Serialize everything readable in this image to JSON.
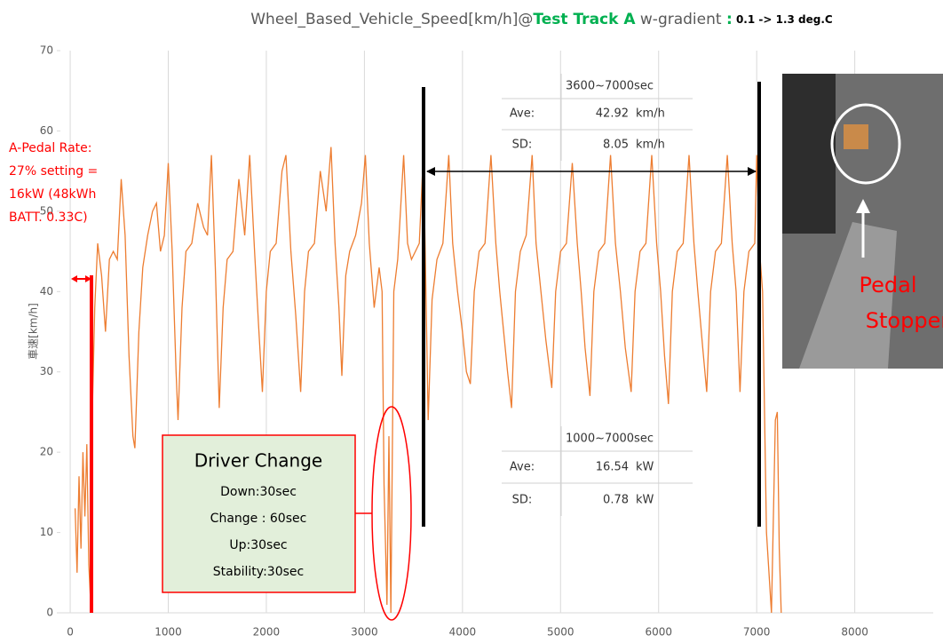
{
  "chart_data": {
    "type": "line",
    "title_parts": [
      "Wheel_Based_Vehicle_Speed[km/h]@",
      "Test Track A",
      " w-gradient ",
      ":",
      " 0.1 -> 1.3 deg.C"
    ],
    "y_label": "車速[km/h]",
    "color": "#ed7d31",
    "x": [
      50,
      70,
      90,
      110,
      130,
      150,
      170,
      190,
      210,
      230,
      250,
      280,
      320,
      360,
      400,
      440,
      480,
      520,
      560,
      600,
      640,
      660,
      700,
      740,
      790,
      840,
      880,
      920,
      960,
      1000,
      1040,
      1080,
      1100,
      1140,
      1180,
      1240,
      1300,
      1360,
      1400,
      1440,
      1480,
      1520,
      1560,
      1600,
      1660,
      1720,
      1780,
      1830,
      1880,
      1920,
      1960,
      2000,
      2040,
      2100,
      2160,
      2200,
      2250,
      2300,
      2350,
      2390,
      2430,
      2490,
      2550,
      2610,
      2660,
      2700,
      2740,
      2770,
      2810,
      2850,
      2910,
      2970,
      3010,
      3050,
      3100,
      3150,
      3180,
      3200,
      3230,
      3250,
      3270,
      3300,
      3340,
      3400,
      3440,
      3480,
      3520,
      3560,
      3600,
      3620,
      3650,
      3690,
      3740,
      3800,
      3860,
      3900,
      3950,
      4000,
      4040,
      4080,
      4120,
      4170,
      4230,
      4290,
      4340,
      4380,
      4420,
      4460,
      4500,
      4540,
      4590,
      4650,
      4710,
      4750,
      4800,
      4850,
      4910,
      4950,
      5000,
      5060,
      5120,
      5170,
      5210,
      5250,
      5300,
      5340,
      5390,
      5450,
      5510,
      5560,
      5610,
      5660,
      5720,
      5760,
      5810,
      5870,
      5930,
      5980,
      6020,
      6060,
      6100,
      6140,
      6190,
      6250,
      6310,
      6360,
      6400,
      6450,
      6490,
      6530,
      6580,
      6640,
      6700,
      6750,
      6790,
      6830,
      6870,
      6920,
      6980,
      7000,
      7030,
      7060,
      7100,
      7150,
      7190,
      7210,
      7230,
      7250
    ],
    "values": [
      13,
      5,
      17,
      8,
      20,
      12,
      21,
      6,
      1,
      27,
      38,
      46,
      42,
      35,
      44,
      45,
      44,
      54,
      47,
      32,
      22,
      20.5,
      35,
      43,
      47,
      50,
      51,
      45,
      47,
      56,
      45,
      30,
      24,
      38,
      45,
      46,
      51,
      48,
      47,
      57,
      43,
      25.5,
      38,
      44,
      45,
      54,
      47,
      57,
      45,
      36,
      27.5,
      40,
      45,
      46,
      55,
      57,
      45,
      37,
      27.5,
      40,
      45,
      46,
      55,
      50,
      58,
      46,
      38,
      29.5,
      42,
      45,
      47,
      51,
      57,
      46,
      38,
      43,
      40,
      16,
      1,
      22,
      0,
      40,
      44,
      57,
      46,
      44,
      45,
      46,
      57,
      45,
      24,
      39,
      44,
      46,
      57,
      46,
      40,
      35,
      30,
      28.5,
      40,
      45,
      46,
      57,
      46,
      40,
      35,
      30,
      25.5,
      40,
      45,
      47,
      57,
      46,
      40,
      34,
      28,
      40,
      45,
      46,
      56,
      46,
      40,
      33,
      27,
      40,
      45,
      46,
      57,
      46,
      40,
      33,
      27.5,
      40,
      45,
      46,
      57,
      46,
      40,
      32,
      26,
      40,
      45,
      46,
      57,
      46,
      40,
      33,
      27.5,
      40,
      45,
      46,
      57,
      46,
      40,
      27.5,
      40,
      45,
      46,
      57,
      45,
      40,
      10,
      0,
      24,
      25,
      8,
      0
    ],
    "xlim": [
      -100,
      8800
    ],
    "xticks": [
      0,
      1000,
      2000,
      3000,
      4000,
      5000,
      6000,
      7000,
      8000
    ],
    "ylim": [
      0,
      70
    ],
    "yticks": [
      0,
      10,
      20,
      30,
      40,
      50,
      60,
      70
    ],
    "grid": true,
    "pedal_note": [
      "A-Pedal Rate:",
      "27% setting =",
      "16kW (48kWh",
      "BATT. 0.33C)"
    ],
    "tables": [
      {
        "header": "3600~7000sec",
        "rows": [
          [
            "Ave:",
            "42.92",
            "km/h"
          ],
          [
            "SD:",
            "8.05",
            "km/h"
          ]
        ]
      },
      {
        "header": "1000~7000sec",
        "rows": [
          [
            "Ave:",
            "16.54",
            "kW"
          ],
          [
            "SD:",
            "0.78",
            "kW"
          ]
        ]
      }
    ],
    "driver_change": {
      "title": "Driver Change",
      "lines": [
        "Down:30sec",
        "Change : 60sec",
        "Up:30sec",
        "Stability:30sec"
      ]
    },
    "photo_label": [
      "Pedal",
      "Stopper"
    ]
  }
}
